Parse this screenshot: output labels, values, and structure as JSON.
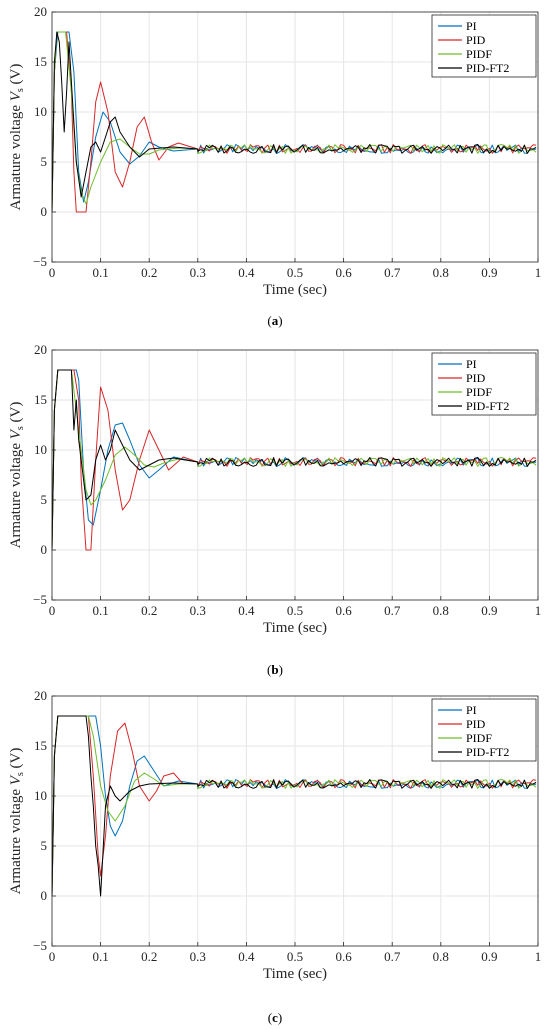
{
  "colors": {
    "PI": "#0072BD",
    "PID": "#D62728",
    "PIDF": "#6DBE2A",
    "PID-FT2": "#000000"
  },
  "chart_data": [
    {
      "type": "line",
      "caption_open": "(",
      "caption_letter": "a",
      "caption_close": ")",
      "xlabel": "Time (sec)",
      "ylabel": "Armature voltage V",
      "ylabel_sub": "s",
      "ylabel_unit": " (V)",
      "xlim": [
        0,
        1
      ],
      "ylim": [
        -5,
        20
      ],
      "xticks": [
        "0",
        "0.1",
        "0.2",
        "0.3",
        "0.4",
        "0.5",
        "0.6",
        "0.7",
        "0.8",
        "0.9",
        "1"
      ],
      "yticks": [
        "-5",
        "0",
        "5",
        "10",
        "15",
        "20"
      ],
      "grid": true,
      "legend": "top-right",
      "series": [
        {
          "name": "PI",
          "x": [
            0,
            0.005,
            0.012,
            0.035,
            0.045,
            0.055,
            0.065,
            0.075,
            0.09,
            0.105,
            0.12,
            0.14,
            0.16,
            0.18,
            0.2,
            0.22,
            0.25,
            0.3,
            1
          ],
          "y": [
            0,
            14,
            18,
            18,
            14,
            4,
            1,
            3,
            7.5,
            10,
            9,
            6,
            4.8,
            5.6,
            7,
            6.5,
            6.1,
            6.3,
            6.3
          ]
        },
        {
          "name": "PID",
          "x": [
            0,
            0.005,
            0.01,
            0.03,
            0.04,
            0.045,
            0.05,
            0.06,
            0.07,
            0.08,
            0.09,
            0.1,
            0.115,
            0.13,
            0.145,
            0.16,
            0.175,
            0.19,
            0.205,
            0.22,
            0.24,
            0.26,
            0.3,
            1
          ],
          "y": [
            0,
            14,
            18,
            18,
            12,
            4,
            0,
            0,
            0,
            5,
            11,
            13,
            10,
            4,
            2.5,
            5,
            8.5,
            9.5,
            7,
            5.2,
            6.5,
            6.9,
            6.3,
            6.3
          ]
        },
        {
          "name": "PIDF",
          "x": [
            0,
            0.005,
            0.01,
            0.028,
            0.04,
            0.05,
            0.06,
            0.07,
            0.08,
            0.1,
            0.12,
            0.14,
            0.16,
            0.18,
            0.2,
            0.22,
            0.26,
            0.3,
            1
          ],
          "y": [
            0,
            14,
            18,
            18,
            12,
            5,
            2,
            0.8,
            2.5,
            5,
            7,
            7.3,
            6.5,
            5.8,
            5.8,
            6.2,
            6.4,
            6.3,
            6.3
          ]
        },
        {
          "name": "PID-FT2",
          "x": [
            0,
            0.005,
            0.01,
            0.015,
            0.02,
            0.025,
            0.03,
            0.035,
            0.04,
            0.05,
            0.06,
            0.07,
            0.08,
            0.09,
            0.1,
            0.11,
            0.12,
            0.13,
            0.14,
            0.16,
            0.18,
            0.2,
            0.25,
            0.3,
            1
          ],
          "y": [
            0,
            15,
            18,
            17,
            13,
            8,
            12,
            17,
            13,
            5,
            1.5,
            4,
            6.5,
            7,
            6,
            7.5,
            9,
            9.5,
            8,
            6.5,
            5.5,
            6.3,
            6.5,
            6.3,
            6.3
          ]
        }
      ]
    },
    {
      "type": "line",
      "caption_open": "(",
      "caption_letter": "b",
      "caption_close": ")",
      "xlabel": "Time (sec)",
      "ylabel": "Armature voltage V",
      "ylabel_sub": "s",
      "ylabel_unit": " (V)",
      "xlim": [
        0,
        1
      ],
      "ylim": [
        -5,
        20
      ],
      "xticks": [
        "0",
        "0.1",
        "0.2",
        "0.3",
        "0.4",
        "0.5",
        "0.6",
        "0.7",
        "0.8",
        "0.9",
        "1"
      ],
      "yticks": [
        "-5",
        "0",
        "5",
        "10",
        "15",
        "20"
      ],
      "grid": true,
      "legend": "top-right",
      "series": [
        {
          "name": "PI",
          "x": [
            0,
            0.005,
            0.012,
            0.05,
            0.055,
            0.065,
            0.075,
            0.085,
            0.1,
            0.115,
            0.13,
            0.145,
            0.16,
            0.18,
            0.2,
            0.22,
            0.25,
            0.3,
            1
          ],
          "y": [
            0,
            14,
            18,
            18,
            17,
            8,
            3,
            2.5,
            6,
            10,
            12.5,
            12.7,
            11,
            8.5,
            7.2,
            8,
            9.3,
            8.8,
            8.8
          ]
        },
        {
          "name": "PID",
          "x": [
            0,
            0.005,
            0.012,
            0.045,
            0.055,
            0.06,
            0.07,
            0.08,
            0.09,
            0.1,
            0.115,
            0.13,
            0.145,
            0.16,
            0.18,
            0.2,
            0.22,
            0.24,
            0.27,
            0.3,
            1
          ],
          "y": [
            0,
            14,
            18,
            18,
            15,
            7,
            0,
            0,
            9,
            16.3,
            14,
            8,
            4,
            5,
            9,
            12,
            10,
            8,
            9.3,
            8.8,
            8.8
          ]
        },
        {
          "name": "PIDF",
          "x": [
            0,
            0.005,
            0.012,
            0.04,
            0.05,
            0.06,
            0.07,
            0.08,
            0.09,
            0.11,
            0.13,
            0.15,
            0.17,
            0.19,
            0.21,
            0.23,
            0.26,
            0.3,
            1
          ],
          "y": [
            0,
            14,
            18,
            18,
            14,
            10,
            6,
            4.5,
            5,
            7,
            9.5,
            10.3,
            9.5,
            8.5,
            8.3,
            8.7,
            9.1,
            8.8,
            8.8
          ]
        },
        {
          "name": "PID-FT2",
          "x": [
            0,
            0.005,
            0.012,
            0.04,
            0.045,
            0.05,
            0.055,
            0.06,
            0.07,
            0.08,
            0.09,
            0.1,
            0.11,
            0.12,
            0.13,
            0.14,
            0.16,
            0.18,
            0.2,
            0.22,
            0.25,
            0.3,
            1
          ],
          "y": [
            0,
            14,
            18,
            18,
            12,
            15,
            11,
            9,
            5,
            5.5,
            9,
            10.5,
            9,
            10,
            12,
            11,
            9,
            8,
            8.5,
            9,
            9.2,
            8.8,
            8.8
          ]
        }
      ]
    },
    {
      "type": "line",
      "caption_open": "(",
      "caption_letter": "c",
      "caption_close": ")",
      "xlabel": "Time (sec)",
      "ylabel": "Armature voltage V",
      "ylabel_sub": "s",
      "ylabel_unit": " (V)",
      "xlim": [
        0,
        1
      ],
      "ylim": [
        -5,
        20
      ],
      "xticks": [
        "0",
        "0.1",
        "0.2",
        "0.3",
        "0.4",
        "0.5",
        "0.6",
        "0.7",
        "0.8",
        "0.9",
        "1"
      ],
      "yticks": [
        "-5",
        "0",
        "5",
        "10",
        "15",
        "20"
      ],
      "grid": true,
      "legend": "top-right",
      "series": [
        {
          "name": "PI",
          "x": [
            0,
            0.005,
            0.012,
            0.08,
            0.09,
            0.1,
            0.11,
            0.12,
            0.13,
            0.145,
            0.16,
            0.175,
            0.19,
            0.21,
            0.23,
            0.26,
            0.3,
            1
          ],
          "y": [
            0,
            14,
            18,
            18,
            18,
            15,
            10,
            7,
            6,
            7.5,
            11,
            13.5,
            14,
            12.5,
            11,
            11.5,
            11.2,
            11.2
          ]
        },
        {
          "name": "PID",
          "x": [
            0,
            0.005,
            0.012,
            0.075,
            0.085,
            0.095,
            0.1,
            0.11,
            0.12,
            0.135,
            0.15,
            0.165,
            0.18,
            0.2,
            0.215,
            0.23,
            0.25,
            0.27,
            0.3,
            1
          ],
          "y": [
            0,
            14,
            18,
            18,
            12,
            4,
            2,
            6,
            12,
            16.5,
            17.3,
            14.5,
            11,
            9.5,
            10.5,
            12,
            12.3,
            11.2,
            11.2,
            11.2
          ]
        },
        {
          "name": "PIDF",
          "x": [
            0,
            0.005,
            0.012,
            0.075,
            0.085,
            0.1,
            0.115,
            0.13,
            0.15,
            0.17,
            0.19,
            0.21,
            0.23,
            0.26,
            0.3,
            1
          ],
          "y": [
            0,
            14,
            18,
            18,
            16,
            11,
            8.5,
            7.5,
            9,
            11.5,
            12.3,
            11.7,
            11,
            11.2,
            11.2,
            11.2
          ]
        },
        {
          "name": "PID-FT2",
          "x": [
            0,
            0.005,
            0.012,
            0.07,
            0.075,
            0.08,
            0.085,
            0.09,
            0.095,
            0.1,
            0.11,
            0.12,
            0.13,
            0.14,
            0.16,
            0.18,
            0.2,
            0.25,
            0.3,
            1
          ],
          "y": [
            0,
            14,
            18,
            18,
            16,
            12,
            9,
            5,
            3,
            0,
            9,
            11,
            10,
            9.5,
            10.5,
            11,
            11.2,
            11.3,
            11.2,
            11.2
          ]
        }
      ]
    }
  ]
}
